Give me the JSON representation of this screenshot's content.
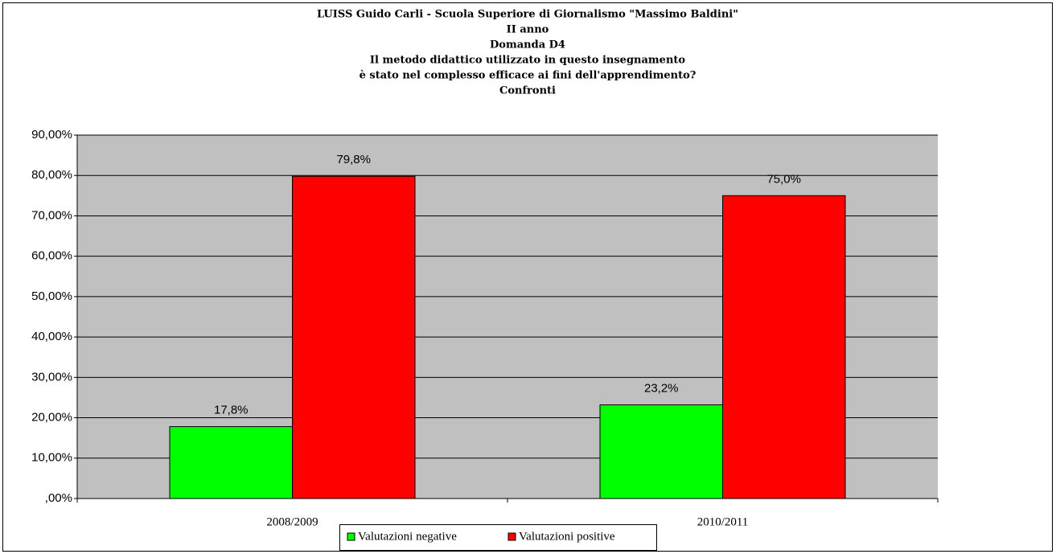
{
  "chart_data": {
    "type": "bar",
    "title": [
      "LUISS Guido Carli - Scuola Superiore di Giornalismo \"Massimo Baldini\"",
      "II anno",
      "Domanda D4",
      "Il metodo didattico utilizzato in questo insegnamento",
      "è stato nel complesso efficace ai fini dell'apprendimento?",
      "Confronti"
    ],
    "categories": [
      "2008/2009",
      "2010/2011"
    ],
    "series": [
      {
        "name": "Valutazioni negative",
        "color": "#00ff00",
        "values": [
          17.8,
          23.2
        ],
        "value_labels": [
          "17,8%",
          "23,2%"
        ]
      },
      {
        "name": "Valutazioni positive",
        "color": "#ff0000",
        "values": [
          79.8,
          75.0
        ],
        "value_labels": [
          "79,8%",
          "75,0%"
        ]
      }
    ],
    "ylim": [
      0,
      90
    ],
    "yticks": [
      {
        "value": 0,
        "label": ",00%"
      },
      {
        "value": 10,
        "label": "10,00%"
      },
      {
        "value": 20,
        "label": "20,00%"
      },
      {
        "value": 30,
        "label": "30,00%"
      },
      {
        "value": 40,
        "label": "40,00%"
      },
      {
        "value": 50,
        "label": "50,00%"
      },
      {
        "value": 60,
        "label": "60,00%"
      },
      {
        "value": 70,
        "label": "70,00%"
      },
      {
        "value": 80,
        "label": "80,00%"
      },
      {
        "value": 90,
        "label": "90,00%"
      }
    ],
    "grid": true,
    "legend": "bottom",
    "plot_background": "#c0c0c0"
  }
}
